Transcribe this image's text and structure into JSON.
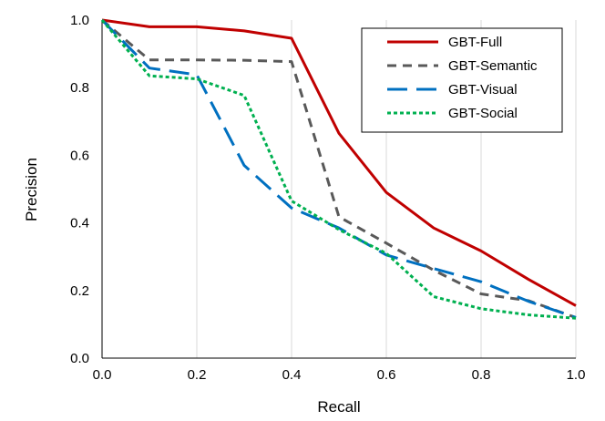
{
  "chart_data": {
    "type": "line",
    "title": "",
    "xlabel": "Recall",
    "ylabel": "Precision",
    "xlim": [
      0,
      1
    ],
    "ylim": [
      0,
      1
    ],
    "x_ticks": [
      "0.0",
      "0.2",
      "0.4",
      "0.6",
      "0.8",
      "1.0"
    ],
    "y_ticks": [
      "0.0",
      "0.2",
      "0.4",
      "0.6",
      "0.8",
      "1.0"
    ],
    "grid": "vertical",
    "legend_position": "top-right",
    "x": [
      0,
      0.1,
      0.2,
      0.3,
      0.4,
      0.5,
      0.6,
      0.7,
      0.8,
      0.9,
      1.0
    ],
    "series": [
      {
        "name": "GBT-Full",
        "color": "#C00000",
        "dash": "solid",
        "values": [
          1.0,
          0.98,
          0.98,
          0.968,
          0.946,
          0.665,
          0.49,
          0.385,
          0.317,
          0.233,
          0.155
        ]
      },
      {
        "name": "GBT-Semantic",
        "color": "#595959",
        "dash": "dashed",
        "values": [
          1.0,
          0.882,
          0.882,
          0.881,
          0.877,
          0.418,
          0.34,
          0.26,
          0.19,
          0.17,
          0.12
        ]
      },
      {
        "name": "GBT-Visual",
        "color": "#0070C0",
        "dash": "long-dashed",
        "values": [
          1.0,
          0.858,
          0.838,
          0.57,
          0.444,
          0.385,
          0.305,
          0.265,
          0.226,
          0.168,
          0.12
        ]
      },
      {
        "name": "GBT-Social",
        "color": "#00B050",
        "dash": "dotted",
        "values": [
          1.0,
          0.835,
          0.826,
          0.777,
          0.465,
          0.38,
          0.31,
          0.182,
          0.146,
          0.128,
          0.118
        ]
      }
    ]
  }
}
